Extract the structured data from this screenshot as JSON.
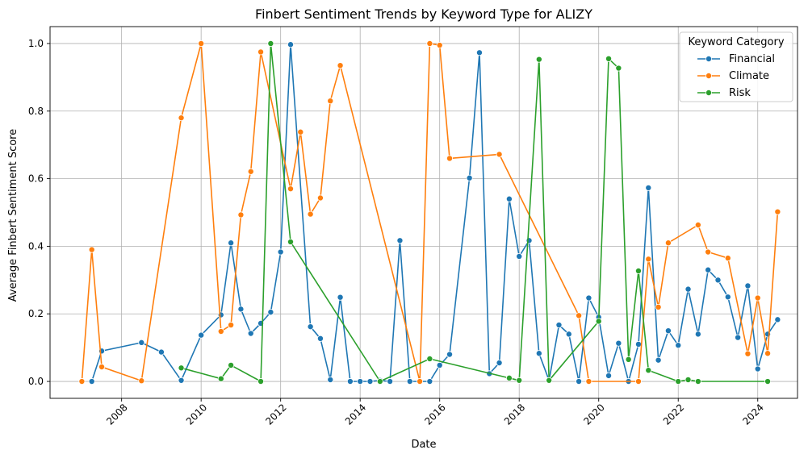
{
  "chart_data": {
    "type": "line",
    "title": "Finbert Sentiment Trends by Keyword Type for ALIZY",
    "xlabel": "Date",
    "ylabel": "Average Finbert Sentiment Score",
    "xlim": [
      2006.2,
      2025.0
    ],
    "ylim": [
      -0.05,
      1.05
    ],
    "x_ticks": [
      2008,
      2010,
      2012,
      2014,
      2016,
      2018,
      2020,
      2022,
      2024
    ],
    "y_ticks": [
      0.0,
      0.2,
      0.4,
      0.6,
      0.8,
      1.0
    ],
    "y_tick_labels": [
      "0.0",
      "0.2",
      "0.4",
      "0.6",
      "0.8",
      "1.0"
    ],
    "grid": true,
    "legend": {
      "title": "Keyword Category",
      "placement": "top-right"
    },
    "series": [
      {
        "name": "Financial",
        "color": "#1f77b4",
        "points": [
          [
            2007.25,
            0.0
          ],
          [
            2007.5,
            0.09
          ],
          [
            2008.5,
            0.115
          ],
          [
            2009.0,
            0.087
          ],
          [
            2009.5,
            0.003
          ],
          [
            2010.0,
            0.137
          ],
          [
            2010.5,
            0.197
          ],
          [
            2010.75,
            0.41
          ],
          [
            2011.0,
            0.214
          ],
          [
            2011.25,
            0.142
          ],
          [
            2011.5,
            0.172
          ],
          [
            2011.75,
            0.205
          ],
          [
            2012.0,
            0.383
          ],
          [
            2012.25,
            0.997
          ],
          [
            2012.75,
            0.162
          ],
          [
            2013.0,
            0.127
          ],
          [
            2013.25,
            0.005
          ],
          [
            2013.5,
            0.249
          ],
          [
            2013.75,
            0.0
          ],
          [
            2014.0,
            0.0
          ],
          [
            2014.25,
            0.0
          ],
          [
            2014.5,
            0.003
          ],
          [
            2014.75,
            0.0
          ],
          [
            2015.0,
            0.417
          ],
          [
            2015.25,
            0.0
          ],
          [
            2015.75,
            0.0
          ],
          [
            2016.0,
            0.048
          ],
          [
            2016.25,
            0.08
          ],
          [
            2016.75,
            0.602
          ],
          [
            2017.0,
            0.973
          ],
          [
            2017.25,
            0.023
          ],
          [
            2017.5,
            0.055
          ],
          [
            2017.75,
            0.54
          ],
          [
            2018.0,
            0.37
          ],
          [
            2018.25,
            0.417
          ],
          [
            2018.5,
            0.083
          ],
          [
            2018.75,
            0.003
          ],
          [
            2019.0,
            0.167
          ],
          [
            2019.25,
            0.14
          ],
          [
            2019.5,
            0.0
          ],
          [
            2019.75,
            0.247
          ],
          [
            2020.0,
            0.19
          ],
          [
            2020.25,
            0.017
          ],
          [
            2020.5,
            0.113
          ],
          [
            2020.75,
            0.0
          ],
          [
            2021.0,
            0.11
          ],
          [
            2021.25,
            0.573
          ],
          [
            2021.5,
            0.063
          ],
          [
            2021.75,
            0.15
          ],
          [
            2022.0,
            0.107
          ],
          [
            2022.25,
            0.273
          ],
          [
            2022.5,
            0.14
          ],
          [
            2022.75,
            0.33
          ],
          [
            2023.0,
            0.3
          ],
          [
            2023.25,
            0.25
          ],
          [
            2023.5,
            0.13
          ],
          [
            2023.75,
            0.283
          ],
          [
            2024.0,
            0.037
          ],
          [
            2024.25,
            0.14
          ],
          [
            2024.5,
            0.183
          ]
        ]
      },
      {
        "name": "Climate",
        "color": "#ff7f0e",
        "points": [
          [
            2007.0,
            0.0
          ],
          [
            2007.25,
            0.39
          ],
          [
            2007.5,
            0.043
          ],
          [
            2008.5,
            0.002
          ],
          [
            2009.5,
            0.78
          ],
          [
            2010.0,
            1.0
          ],
          [
            2010.5,
            0.148
          ],
          [
            2010.75,
            0.167
          ],
          [
            2011.0,
            0.493
          ],
          [
            2011.25,
            0.621
          ],
          [
            2011.5,
            0.975
          ],
          [
            2012.25,
            0.57
          ],
          [
            2012.5,
            0.738
          ],
          [
            2012.75,
            0.495
          ],
          [
            2013.0,
            0.543
          ],
          [
            2013.25,
            0.83
          ],
          [
            2013.5,
            0.935
          ],
          [
            2015.5,
            0.0
          ],
          [
            2015.75,
            1.0
          ],
          [
            2016.0,
            0.995
          ],
          [
            2016.25,
            0.66
          ],
          [
            2017.5,
            0.672
          ],
          [
            2019.5,
            0.195
          ],
          [
            2019.75,
            0.0
          ],
          [
            2021.0,
            0.0
          ],
          [
            2021.25,
            0.362
          ],
          [
            2021.5,
            0.22
          ],
          [
            2021.75,
            0.41
          ],
          [
            2022.5,
            0.463
          ],
          [
            2022.75,
            0.383
          ],
          [
            2023.25,
            0.365
          ],
          [
            2023.75,
            0.082
          ],
          [
            2024.0,
            0.247
          ],
          [
            2024.25,
            0.083
          ],
          [
            2024.5,
            0.502
          ]
        ]
      },
      {
        "name": "Risk",
        "color": "#2ca02c",
        "points": [
          [
            2009.5,
            0.04
          ],
          [
            2010.5,
            0.008
          ],
          [
            2010.75,
            0.048
          ],
          [
            2011.5,
            0.0
          ],
          [
            2011.75,
            1.0
          ],
          [
            2012.25,
            0.413
          ],
          [
            2014.5,
            0.0
          ],
          [
            2015.75,
            0.067
          ],
          [
            2017.75,
            0.01
          ],
          [
            2018.0,
            0.003
          ],
          [
            2018.5,
            0.953
          ],
          [
            2018.75,
            0.003
          ],
          [
            2020.0,
            0.178
          ],
          [
            2020.25,
            0.955
          ],
          [
            2020.5,
            0.927
          ],
          [
            2020.75,
            0.065
          ],
          [
            2021.0,
            0.327
          ],
          [
            2021.25,
            0.033
          ],
          [
            2022.0,
            0.0
          ],
          [
            2022.25,
            0.005
          ],
          [
            2022.5,
            0.0
          ],
          [
            2024.25,
            0.0
          ]
        ]
      }
    ]
  }
}
